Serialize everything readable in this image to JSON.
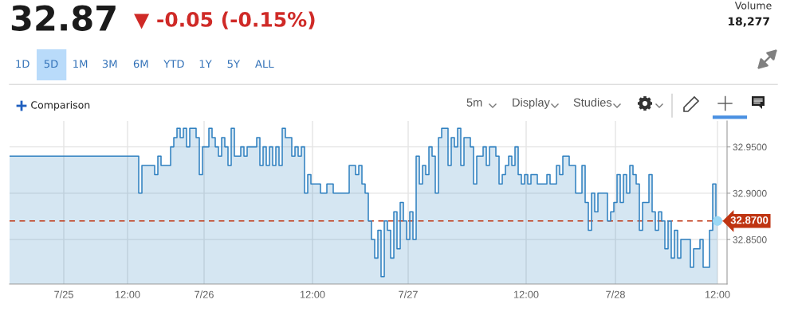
{
  "chart_data": {
    "type": "area",
    "title": "32.87",
    "subtitle": "▼ -0.05 (-0.15%)",
    "annotations": [
      "Volume",
      "18,277",
      "1D",
      "5D",
      "1M",
      "3M",
      "6M",
      "YTD",
      "1Y",
      "5Y",
      "ALL",
      "Comparison",
      "5m",
      "Display",
      "Studies"
    ],
    "categories": [
      null,
      null,
      null,
      null,
      null,
      null,
      null,
      null,
      null,
      null,
      null,
      null,
      null,
      null,
      null,
      null,
      null,
      "7/25",
      null,
      null,
      null,
      null,
      null,
      null,
      null,
      null,
      null,
      null,
      null,
      null,
      null,
      null,
      null,
      null,
      null,
      null,
      null,
      "12:00",
      null,
      null,
      null,
      null,
      null,
      null,
      null,
      null,
      null,
      null,
      null,
      null,
      null,
      null,
      null,
      null,
      null,
      null,
      null,
      null,
      null,
      null,
      null,
      "7/26",
      null,
      null,
      null,
      null,
      null,
      null,
      null,
      null,
      null,
      null,
      null,
      null,
      null,
      null,
      null,
      null,
      null,
      null,
      null,
      null,
      null,
      null,
      null,
      null,
      null,
      null,
      null,
      null,
      null,
      null,
      null,
      null,
      null,
      "12:00",
      null,
      null,
      null,
      null,
      null,
      null,
      null,
      null,
      null,
      null,
      null,
      null,
      null,
      null,
      null,
      null,
      null,
      null,
      null,
      null,
      null,
      null,
      null,
      null,
      null,
      null,
      null,
      null,
      null,
      "7/27",
      null,
      null,
      null,
      null,
      null,
      null,
      null,
      null,
      null,
      null,
      null,
      null,
      null,
      null,
      null,
      null,
      null,
      null,
      null,
      null,
      null,
      null,
      null,
      null,
      null,
      null,
      null,
      null,
      null,
      null,
      null,
      null,
      null,
      null,
      null,
      null,
      "12:00",
      null,
      null,
      null,
      null,
      null,
      null,
      null,
      null,
      null,
      null,
      null,
      null,
      null,
      null,
      null,
      null,
      null,
      null,
      null,
      null,
      null,
      null,
      null,
      null,
      null,
      null,
      null,
      "7/28",
      null,
      null,
      null,
      null,
      null,
      null,
      null,
      null,
      null,
      null,
      null,
      null,
      null,
      null,
      null,
      null,
      null,
      null,
      null,
      null,
      null,
      null,
      null,
      null,
      null,
      null,
      null,
      null,
      null,
      null,
      null,
      "12:00"
    ],
    "series": [
      {
        "color": "#2f80c0",
        "values": [
          32.94,
          32.94,
          32.94,
          32.94,
          32.94,
          32.94,
          32.94,
          32.94,
          32.94,
          32.94,
          32.94,
          32.94,
          32.94,
          32.94,
          32.94,
          32.94,
          32.94,
          32.94,
          32.94,
          32.94,
          32.94,
          32.94,
          32.94,
          32.94,
          32.94,
          32.94,
          32.94,
          32.94,
          32.94,
          32.94,
          32.94,
          32.94,
          32.94,
          32.94,
          32.94,
          32.94,
          32.94,
          32.94,
          32.94,
          32.94,
          32.94,
          32.9,
          32.93,
          32.93,
          32.93,
          32.93,
          32.92,
          32.94,
          32.93,
          32.93,
          32.93,
          32.95,
          32.96,
          32.97,
          32.96,
          32.97,
          32.95,
          32.97,
          32.97,
          32.96,
          32.92,
          32.95,
          32.95,
          32.97,
          32.96,
          32.95,
          32.94,
          32.96,
          32.95,
          32.93,
          32.97,
          32.94,
          32.94,
          32.95,
          32.94,
          32.95,
          32.95,
          32.95,
          32.96,
          32.93,
          32.95,
          32.93,
          32.95,
          32.93,
          32.95,
          32.93,
          32.97,
          32.96,
          32.96,
          32.94,
          32.95,
          32.94,
          32.95,
          32.9,
          32.92,
          32.91,
          32.91,
          32.91,
          32.9,
          32.9,
          32.91,
          32.91,
          32.9,
          32.9,
          32.9,
          32.9,
          32.9,
          32.93,
          32.93,
          32.92,
          32.93,
          32.91,
          32.9,
          32.87,
          32.85,
          32.83,
          32.86,
          32.81,
          32.87,
          32.86,
          32.83,
          32.88,
          32.84,
          32.89,
          32.87,
          32.85,
          32.88,
          32.85,
          32.94,
          32.91,
          32.93,
          32.92,
          32.95,
          32.94,
          32.9,
          32.96,
          32.97,
          32.97,
          32.93,
          32.96,
          32.95,
          32.97,
          32.93,
          32.96,
          32.96,
          32.95,
          32.91,
          32.94,
          32.94,
          32.95,
          32.93,
          32.95,
          32.95,
          32.94,
          32.91,
          32.92,
          32.93,
          32.94,
          32.93,
          32.95,
          32.92,
          32.91,
          32.92,
          32.91,
          32.92,
          32.92,
          32.91,
          32.91,
          32.91,
          32.92,
          32.91,
          32.91,
          32.93,
          32.92,
          32.94,
          32.94,
          32.93,
          32.93,
          32.9,
          32.9,
          32.93,
          32.89,
          32.86,
          32.9,
          32.88,
          32.9,
          32.9,
          32.9,
          32.87,
          32.88,
          32.89,
          32.92,
          32.89,
          32.92,
          32.9,
          32.93,
          32.92,
          32.91,
          32.86,
          32.89,
          32.89,
          32.92,
          32.88,
          32.86,
          32.88,
          32.87,
          32.84,
          32.87,
          32.83,
          32.86,
          32.83,
          32.85,
          32.85,
          32.85,
          32.82,
          32.84,
          32.84,
          32.85,
          32.82,
          32.82,
          32.86,
          32.91,
          32.87
        ]
      },
      {
        "type": "scatter",
        "color": "#9bd8f5",
        "values": [
          null,
          null,
          null,
          null,
          null,
          null,
          null,
          null,
          null,
          null,
          null,
          null,
          null,
          null,
          null,
          null,
          null,
          null,
          null,
          null,
          null,
          null,
          null,
          null,
          null,
          null,
          null,
          null,
          null,
          null,
          null,
          null,
          null,
          null,
          null,
          null,
          null,
          null,
          null,
          null,
          null,
          null,
          null,
          null,
          null,
          null,
          null,
          null,
          null,
          null,
          null,
          null,
          null,
          null,
          null,
          null,
          null,
          null,
          null,
          null,
          null,
          null,
          null,
          null,
          null,
          null,
          null,
          null,
          null,
          null,
          null,
          null,
          null,
          null,
          null,
          null,
          null,
          null,
          null,
          null,
          null,
          null,
          null,
          null,
          null,
          null,
          null,
          null,
          null,
          null,
          null,
          null,
          null,
          null,
          null,
          null,
          null,
          null,
          null,
          null,
          null,
          null,
          null,
          null,
          null,
          null,
          null,
          null,
          null,
          null,
          null,
          null,
          null,
          null,
          null,
          null,
          null,
          null,
          null,
          null,
          null,
          null,
          null,
          null,
          null,
          null,
          null,
          null,
          null,
          null,
          null,
          null,
          null,
          null,
          null,
          null,
          null,
          null,
          null,
          null,
          null,
          null,
          null,
          null,
          null,
          null,
          null,
          null,
          null,
          null,
          null,
          null,
          null,
          null,
          null,
          null,
          null,
          null,
          null,
          null,
          null,
          null,
          null,
          null,
          null,
          null,
          null,
          null,
          null,
          null,
          null,
          null,
          null,
          null,
          null,
          null,
          null,
          null,
          null,
          null,
          null,
          null,
          null,
          null,
          null,
          null,
          null,
          null,
          null,
          null,
          null,
          null,
          null,
          null,
          null,
          null,
          null,
          null,
          null,
          null,
          null,
          null,
          null,
          null,
          null,
          null,
          null,
          null,
          null,
          null,
          null,
          null,
          null,
          null,
          null,
          null,
          null,
          null,
          null,
          null,
          null,
          null,
          32.87
        ]
      }
    ],
    "ylim": [
      32.802,
      32.978
    ],
    "yticks": [
      {
        "value": 32.85,
        "label": "32.8500"
      },
      {
        "value": 32.9,
        "label": "32.9000"
      },
      {
        "value": 32.95,
        "label": "32.9500"
      }
    ],
    "ref_lines": [
      {
        "axis": "y",
        "value": 32.87,
        "label": "32.8700",
        "color": "#bf3411",
        "line_style": "dashed"
      }
    ],
    "grid": true
  }
}
